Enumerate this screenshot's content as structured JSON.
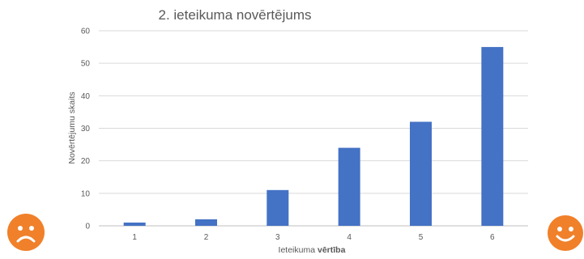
{
  "chart_data": {
    "type": "bar",
    "title": "2. ieteikuma novērtējums",
    "xlabel_prefix": "Ieteikuma ",
    "xlabel_bold": "vērtība",
    "ylabel": "Novērtējumu skaits",
    "categories": [
      "1",
      "2",
      "3",
      "4",
      "5",
      "6"
    ],
    "values": [
      1,
      2,
      11,
      24,
      32,
      55
    ],
    "ylim": [
      0,
      60
    ],
    "yticks": [
      "0",
      "10",
      "20",
      "30",
      "40",
      "50",
      "60"
    ],
    "grid": true,
    "legend": "none",
    "bar_color": "#4472c4"
  },
  "decorations": {
    "left_face": "sad-face-icon",
    "right_face": "happy-face-icon",
    "face_color": "#f0802a"
  }
}
